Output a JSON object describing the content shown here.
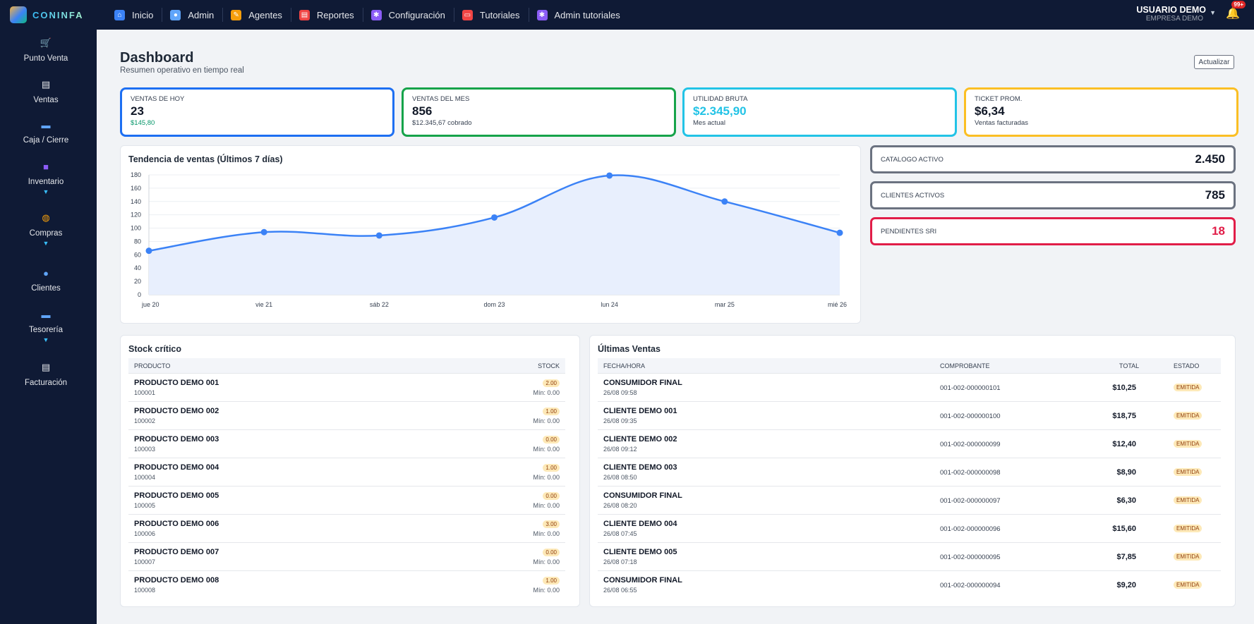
{
  "app": {
    "name": "CONINFA"
  },
  "nav": [
    {
      "label": "Inicio",
      "icon": "home-icon",
      "color": "#3b82f6"
    },
    {
      "label": "Admin",
      "icon": "admin-user-icon",
      "color": "#60a5fa"
    },
    {
      "label": "Agentes",
      "icon": "agents-icon",
      "color": "#f59e0b"
    },
    {
      "label": "Reportes",
      "icon": "clipboard-icon",
      "color": "#ef4444"
    },
    {
      "label": "Configuración",
      "icon": "gear-icon",
      "color": "#8b5cf6"
    },
    {
      "label": "Tutoriales",
      "icon": "monitor-icon",
      "color": "#ef4444"
    },
    {
      "label": "Admin tutoriales",
      "icon": "gear-icon",
      "color": "#8b5cf6"
    }
  ],
  "user": {
    "name": "USUARIO DEMO",
    "company": "EMPRESA DEMO",
    "notifications": "99+"
  },
  "sidebar": [
    {
      "label": "Punto Venta",
      "icon": "cart-icon",
      "expandable": false
    },
    {
      "label": "Ventas",
      "icon": "document-plus-icon",
      "expandable": false
    },
    {
      "label": "Caja / Cierre",
      "icon": "cash-register-icon",
      "expandable": false
    },
    {
      "label": "Inventario",
      "icon": "box-add-icon",
      "expandable": true
    },
    {
      "label": "Compras",
      "icon": "purchase-icon",
      "expandable": true
    },
    {
      "label": "Clientes",
      "icon": "clients-icon",
      "expandable": false
    },
    {
      "label": "Tesorería",
      "icon": "treasury-icon",
      "expandable": true
    },
    {
      "label": "Facturación",
      "icon": "invoice-icon",
      "expandable": false
    }
  ],
  "page": {
    "title": "Dashboard",
    "subtitle": "Resumen operativo en tiempo real",
    "refresh_label": "Actualizar"
  },
  "kpis": [
    {
      "label": "VENTAS DE HOY",
      "value": "23",
      "sub": "$145,80",
      "border": "#1d6ff2",
      "sub_color": "#059669",
      "value_color": "#111827"
    },
    {
      "label": "VENTAS DEL MES",
      "value": "856",
      "sub": "$12.345,67 cobrado",
      "border": "#16a34a",
      "sub_color": "#374151",
      "value_color": "#111827"
    },
    {
      "label": "UTILIDAD BRUTA",
      "value": "$2.345,90",
      "sub": "Mes actual",
      "border": "#22c3e6",
      "sub_color": "#374151",
      "value_color": "#22c3e6"
    },
    {
      "label": "TICKET PROM.",
      "value": "$6,34",
      "sub": "Ventas facturadas",
      "border": "#fbbf24",
      "sub_color": "#374151",
      "value_color": "#111827"
    }
  ],
  "stats": [
    {
      "label": "CATALOGO ACTIVO",
      "value": "2.450",
      "border": "#6b7280",
      "value_color": "#111827"
    },
    {
      "label": "CLIENTES ACTIVOS",
      "value": "785",
      "border": "#6b7280",
      "value_color": "#111827"
    },
    {
      "label": "PENDIENTES SRI",
      "value": "18",
      "border": "#e11d48",
      "value_color": "#e11d48"
    }
  ],
  "trend": {
    "title": "Tendencia de ventas (Últimos 7 días)"
  },
  "chart_data": {
    "type": "area",
    "title": "Tendencia de ventas (Últimos 7 días)",
    "categories": [
      "jue 20",
      "vie 21",
      "sáb 22",
      "dom 23",
      "lun 24",
      "mar 25",
      "mié 26"
    ],
    "values": [
      66,
      94,
      89,
      116,
      179,
      140,
      93
    ],
    "ylim": [
      0,
      180
    ],
    "yticks": [
      0,
      20,
      40,
      60,
      80,
      100,
      120,
      140,
      160,
      180
    ],
    "color": "#3b82f6",
    "grid": true
  },
  "stock": {
    "title": "Stock crítico",
    "headers": {
      "product": "PRODUCTO",
      "stock": "STOCK"
    },
    "rows": [
      {
        "name": "PRODUCTO DEMO 001",
        "code": "100001",
        "stock": "2.00",
        "min": "Mín: 0.00"
      },
      {
        "name": "PRODUCTO DEMO 002",
        "code": "100002",
        "stock": "1.00",
        "min": "Mín: 0.00"
      },
      {
        "name": "PRODUCTO DEMO 003",
        "code": "100003",
        "stock": "0.00",
        "min": "Mín: 0.00"
      },
      {
        "name": "PRODUCTO DEMO 004",
        "code": "100004",
        "stock": "1.00",
        "min": "Mín: 0.00"
      },
      {
        "name": "PRODUCTO DEMO 005",
        "code": "100005",
        "stock": "0.00",
        "min": "Mín: 0.00"
      },
      {
        "name": "PRODUCTO DEMO 006",
        "code": "100006",
        "stock": "3.00",
        "min": "Mín: 0.00"
      },
      {
        "name": "PRODUCTO DEMO 007",
        "code": "100007",
        "stock": "0.00",
        "min": "Mín: 0.00"
      },
      {
        "name": "PRODUCTO DEMO 008",
        "code": "100008",
        "stock": "1.00",
        "min": "Mín: 0.00"
      }
    ]
  },
  "sales": {
    "title": "Últimas Ventas",
    "headers": {
      "datetime": "FECHA/HORA",
      "voucher": "COMPROBANTE",
      "total": "TOTAL",
      "status": "ESTADO"
    },
    "rows": [
      {
        "customer": "CONSUMIDOR FINAL",
        "date": "26/08 09:58",
        "voucher": "001-002-000000101",
        "total": "$10,25",
        "status": "EMITIDA"
      },
      {
        "customer": "CLIENTE DEMO 001",
        "date": "26/08 09:35",
        "voucher": "001-002-000000100",
        "total": "$18,75",
        "status": "EMITIDA"
      },
      {
        "customer": "CLIENTE DEMO 002",
        "date": "26/08 09:12",
        "voucher": "001-002-000000099",
        "total": "$12,40",
        "status": "EMITIDA"
      },
      {
        "customer": "CLIENTE DEMO 003",
        "date": "26/08 08:50",
        "voucher": "001-002-000000098",
        "total": "$8,90",
        "status": "EMITIDA"
      },
      {
        "customer": "CONSUMIDOR FINAL",
        "date": "26/08 08:20",
        "voucher": "001-002-000000097",
        "total": "$6,30",
        "status": "EMITIDA"
      },
      {
        "customer": "CLIENTE DEMO 004",
        "date": "26/08 07:45",
        "voucher": "001-002-000000096",
        "total": "$15,60",
        "status": "EMITIDA"
      },
      {
        "customer": "CLIENTE DEMO 005",
        "date": "26/08 07:18",
        "voucher": "001-002-000000095",
        "total": "$7,85",
        "status": "EMITIDA"
      },
      {
        "customer": "CONSUMIDOR FINAL",
        "date": "26/08 06:55",
        "voucher": "001-002-000000094",
        "total": "$9,20",
        "status": "EMITIDA"
      }
    ]
  }
}
